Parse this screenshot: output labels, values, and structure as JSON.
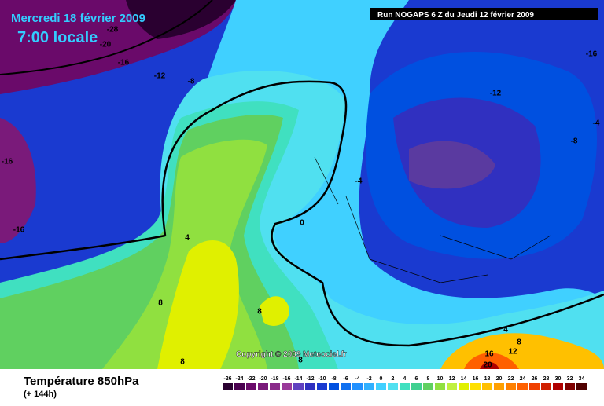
{
  "header": {
    "date": "Mercredi 18 février 2009",
    "time": "7:00 locale",
    "run": "Run NOGAPS 6 Z du Jeudi 12 février 2009",
    "copyright": "Copyright © 2009 Meteociel.fr"
  },
  "footer": {
    "title": "Température 850hPa",
    "lead": "(+ 144h)"
  },
  "legend": {
    "labels": [
      -26,
      -24,
      -22,
      -20,
      -18,
      -16,
      -14,
      -12,
      -10,
      -8,
      -6,
      -4,
      -2,
      0,
      2,
      4,
      6,
      8,
      10,
      12,
      14,
      16,
      18,
      20,
      22,
      24,
      26,
      28,
      30,
      32,
      34
    ],
    "colors": [
      "#2a0030",
      "#4b0050",
      "#6a0a6a",
      "#7a1a7a",
      "#8a2a8a",
      "#9a3a9a",
      "#6040c0",
      "#3030c0",
      "#1a3ad0",
      "#0050e0",
      "#1070f0",
      "#2090ff",
      "#30b0ff",
      "#40d0ff",
      "#50e0f0",
      "#40e0c0",
      "#40d090",
      "#60d060",
      "#90e040",
      "#c0f040",
      "#e0f000",
      "#ffe000",
      "#ffc000",
      "#ffa000",
      "#ff8000",
      "#ff6000",
      "#f04000",
      "#d02000",
      "#b00000",
      "#800000",
      "#500000"
    ]
  },
  "contour_labels": [
    "-28",
    "-20",
    "-16",
    "-12",
    "-8",
    "-16",
    "-12",
    "-4",
    "-8",
    "-16",
    "-16",
    "-4",
    "0",
    "4",
    "8",
    "8",
    "8",
    "8",
    "4",
    "8",
    "12",
    "16",
    "20"
  ]
}
